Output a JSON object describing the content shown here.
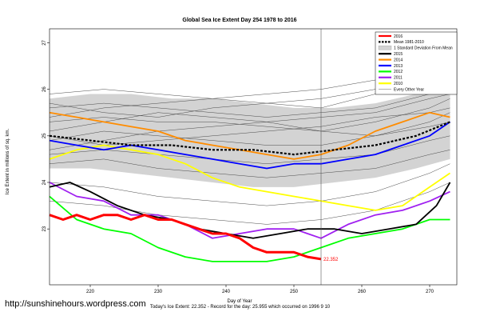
{
  "chart_data": {
    "type": "line",
    "title": "Global Sea Ice Extent Day 254 1978 to 2016",
    "xlabel": "Day of Year",
    "ylabel": "Ice Extent in millions of sq. km.",
    "xlim": [
      214,
      274
    ],
    "ylim": [
      21.8,
      27.3
    ],
    "xticks": [
      220,
      230,
      240,
      250,
      260,
      270
    ],
    "yticks": [
      23,
      24,
      25,
      26,
      27
    ],
    "grid": false,
    "legend_position": "top-right",
    "marker_day": 254,
    "end_label": "22.352",
    "band": {
      "name": "1 Standard Deviation From Mean",
      "color": "#d3d3d3",
      "x": [
        214,
        220,
        226,
        232,
        238,
        244,
        250,
        256,
        262,
        268,
        273
      ],
      "upper": [
        25.8,
        25.9,
        25.9,
        25.8,
        25.8,
        25.7,
        25.6,
        25.6,
        25.7,
        25.9,
        26.1
      ],
      "lower": [
        24.3,
        24.3,
        24.2,
        24.1,
        24.0,
        23.9,
        23.9,
        24.0,
        24.1,
        24.3,
        24.5
      ]
    },
    "background_series": [
      {
        "x": [
          214,
          222,
          230,
          238,
          246,
          254,
          262,
          270,
          273
        ],
        "values": [
          25.6,
          25.7,
          25.6,
          25.5,
          25.4,
          25.5,
          25.6,
          25.9,
          26.0
        ]
      },
      {
        "x": [
          214,
          222,
          230,
          238,
          246,
          254,
          262,
          270,
          273
        ],
        "values": [
          25.9,
          26.0,
          25.9,
          25.8,
          25.7,
          25.8,
          26.0,
          26.3,
          26.4
        ]
      },
      {
        "x": [
          214,
          222,
          230,
          238,
          246,
          254,
          262,
          270,
          273
        ],
        "values": [
          25.3,
          25.4,
          25.3,
          25.3,
          25.2,
          25.1,
          25.3,
          25.6,
          25.8
        ]
      },
      {
        "x": [
          214,
          222,
          230,
          238,
          246,
          254,
          262,
          270,
          273
        ],
        "values": [
          24.9,
          25.1,
          25.0,
          24.9,
          24.8,
          24.8,
          25.0,
          25.2,
          25.3
        ]
      },
      {
        "x": [
          214,
          222,
          230,
          238,
          246,
          254,
          262,
          270,
          273
        ],
        "values": [
          24.6,
          24.7,
          24.6,
          24.5,
          24.4,
          24.5,
          24.6,
          24.9,
          25.0
        ]
      },
      {
        "x": [
          214,
          222,
          230,
          238,
          246,
          254,
          262,
          270,
          273
        ],
        "values": [
          25.7,
          25.5,
          25.4,
          25.6,
          25.7,
          25.6,
          25.9,
          26.4,
          26.8
        ]
      },
      {
        "x": [
          214,
          222,
          230,
          238,
          246,
          254,
          262,
          270,
          273
        ],
        "values": [
          25.1,
          25.3,
          25.5,
          25.4,
          25.3,
          25.4,
          25.5,
          25.8,
          25.9
        ]
      },
      {
        "x": [
          214,
          222,
          230,
          238,
          246,
          254,
          262,
          270,
          273
        ],
        "values": [
          24.4,
          24.5,
          24.3,
          24.2,
          24.1,
          24.2,
          24.3,
          24.6,
          24.7
        ]
      },
      {
        "x": [
          214,
          222,
          230,
          238,
          246,
          254,
          262,
          270,
          273
        ],
        "values": [
          24.0,
          23.9,
          23.7,
          23.6,
          23.5,
          23.6,
          23.8,
          24.2,
          24.4
        ]
      },
      {
        "x": [
          214,
          222,
          230,
          238,
          246,
          254,
          262,
          270,
          273
        ],
        "values": [
          25.4,
          25.6,
          25.7,
          25.8,
          25.9,
          26.0,
          26.2,
          26.6,
          26.9
        ]
      },
      {
        "x": [
          214,
          222,
          230,
          238,
          246,
          254,
          262,
          270,
          273
        ],
        "values": [
          25.0,
          24.8,
          24.9,
          25.0,
          25.1,
          25.2,
          25.4,
          25.5,
          25.6
        ]
      },
      {
        "x": [
          214,
          222,
          230,
          238,
          246,
          254,
          262,
          270,
          273
        ],
        "values": [
          23.6,
          23.5,
          23.3,
          23.2,
          23.1,
          23.2,
          23.4,
          23.8,
          24.0
        ]
      },
      {
        "x": [
          214,
          222,
          230,
          238,
          246,
          254,
          262,
          270,
          273
        ],
        "values": [
          24.7,
          24.9,
          25.1,
          25.2,
          25.3,
          25.1,
          25.0,
          25.3,
          25.5
        ]
      }
    ],
    "series": [
      {
        "name": "2016",
        "color": "#ff0000",
        "x": [
          214,
          216,
          218,
          220,
          222,
          224,
          226,
          228,
          230,
          232,
          234,
          236,
          238,
          240,
          242,
          244,
          246,
          248,
          250,
          252,
          254
        ],
        "values": [
          23.3,
          23.2,
          23.3,
          23.2,
          23.3,
          23.3,
          23.2,
          23.3,
          23.2,
          23.2,
          23.1,
          23.0,
          22.9,
          22.9,
          22.8,
          22.6,
          22.5,
          22.5,
          22.5,
          22.4,
          22.352
        ]
      },
      {
        "name": "Mean 1981-2010",
        "color": "#000000",
        "x": [
          214,
          220,
          226,
          232,
          238,
          244,
          250,
          256,
          262,
          268,
          273
        ],
        "values": [
          25.0,
          24.9,
          24.8,
          24.8,
          24.7,
          24.7,
          24.6,
          24.7,
          24.8,
          25.0,
          25.3
        ]
      },
      {
        "name": "2015",
        "color": "#000000",
        "x": [
          214,
          217,
          220,
          224,
          228,
          232,
          236,
          240,
          244,
          248,
          252,
          256,
          260,
          264,
          268,
          271,
          273
        ],
        "values": [
          23.9,
          24.0,
          23.8,
          23.5,
          23.3,
          23.2,
          23.0,
          22.9,
          22.8,
          22.9,
          23.0,
          23.0,
          22.9,
          23.0,
          23.1,
          23.5,
          24.0
        ]
      },
      {
        "name": "2014",
        "color": "#ff8c00",
        "x": [
          214,
          218,
          222,
          226,
          230,
          234,
          238,
          242,
          246,
          250,
          254,
          258,
          262,
          266,
          270,
          273
        ],
        "values": [
          25.5,
          25.4,
          25.3,
          25.2,
          25.1,
          24.9,
          24.8,
          24.7,
          24.6,
          24.5,
          24.6,
          24.8,
          25.1,
          25.3,
          25.5,
          25.4
        ]
      },
      {
        "name": "2013",
        "color": "#0000ff",
        "x": [
          214,
          218,
          222,
          226,
          230,
          234,
          238,
          242,
          246,
          250,
          254,
          258,
          262,
          266,
          270,
          273
        ],
        "values": [
          24.9,
          24.8,
          24.7,
          24.8,
          24.7,
          24.6,
          24.5,
          24.4,
          24.3,
          24.4,
          24.4,
          24.5,
          24.6,
          24.8,
          25.0,
          25.3
        ]
      },
      {
        "name": "2012",
        "color": "#00ff00",
        "x": [
          214,
          218,
          222,
          226,
          230,
          234,
          238,
          242,
          246,
          250,
          254,
          258,
          262,
          266,
          270,
          273
        ],
        "values": [
          23.7,
          23.2,
          23.0,
          22.9,
          22.6,
          22.4,
          22.3,
          22.3,
          22.3,
          22.4,
          22.6,
          22.8,
          22.9,
          23.0,
          23.2,
          23.2
        ]
      },
      {
        "name": "2011",
        "color": "#a020f0",
        "x": [
          214,
          218,
          222,
          226,
          230,
          234,
          238,
          242,
          246,
          250,
          254,
          258,
          262,
          266,
          270,
          273
        ],
        "values": [
          24.0,
          23.7,
          23.6,
          23.3,
          23.3,
          23.1,
          22.8,
          22.9,
          23.0,
          23.0,
          22.8,
          23.1,
          23.3,
          23.4,
          23.6,
          23.8
        ]
      },
      {
        "name": "2010",
        "color": "#ffff00",
        "x": [
          214,
          218,
          222,
          226,
          230,
          234,
          238,
          242,
          246,
          250,
          254,
          258,
          262,
          266,
          270,
          273
        ],
        "values": [
          24.5,
          24.7,
          24.8,
          24.7,
          24.6,
          24.4,
          24.1,
          23.9,
          23.8,
          23.7,
          23.6,
          23.5,
          23.4,
          23.5,
          23.9,
          24.2
        ]
      }
    ],
    "legend": [
      {
        "label": "2016",
        "color": "#ff0000",
        "style": "solid"
      },
      {
        "label": "Mean 1981-2010",
        "color": "#000000",
        "style": "dashed"
      },
      {
        "label": "1 Standard Deviation From Mean",
        "color": "#d3d3d3",
        "style": "box"
      },
      {
        "label": "2015",
        "color": "#000000",
        "style": "solid"
      },
      {
        "label": "2014",
        "color": "#ff8c00",
        "style": "solid"
      },
      {
        "label": "2013",
        "color": "#0000ff",
        "style": "solid"
      },
      {
        "label": "2012",
        "color": "#00ff00",
        "style": "solid"
      },
      {
        "label": "2011",
        "color": "#a020f0",
        "style": "solid"
      },
      {
        "label": "2010",
        "color": "#ffff00",
        "style": "solid"
      },
      {
        "label": "Every Other Year",
        "color": "#808080",
        "style": "thin"
      }
    ]
  },
  "credit": "http://sunshinehours.wordpress.com",
  "footer": "Today's Ice Extent: 22.352 - Record for the day: 25.955 which occurred on 1996 9 10"
}
